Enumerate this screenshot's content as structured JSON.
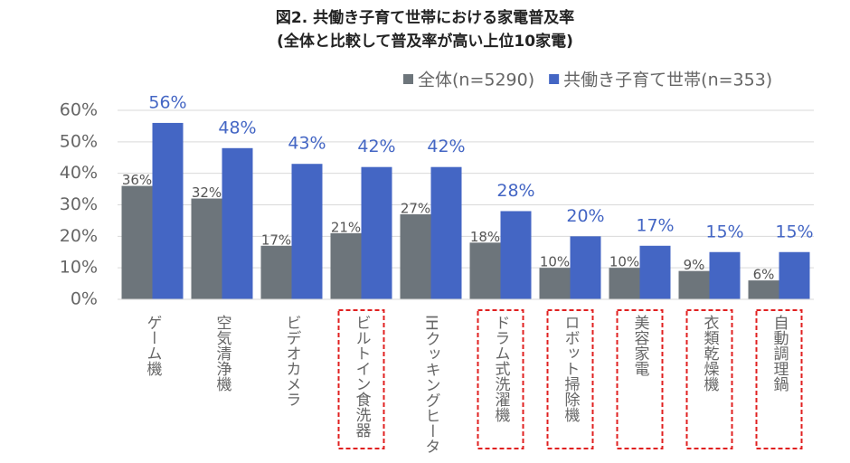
{
  "chart_data": {
    "type": "bar",
    "title": "図2. 共働き子育て世帯における家電普及率",
    "subtitle": "(全体と比較して普及率が高い上位10家電)",
    "categories": [
      "ゲーム機",
      "空気清浄機",
      "ビデオカメラ",
      "ビルトイン食洗器",
      "IHクッキングヒータ",
      "ドラム式洗濯機",
      "ロボット掃除機",
      "美容家電",
      "衣類乾燥機",
      "自動調理鍋"
    ],
    "highlight": [
      false,
      false,
      false,
      true,
      false,
      true,
      true,
      true,
      true,
      true
    ],
    "series": [
      {
        "name": "全体(n=5290)",
        "color": "#6d757b",
        "values": [
          36,
          32,
          17,
          21,
          27,
          18,
          10,
          10,
          9,
          6
        ],
        "value_labels": [
          "36%",
          "32%",
          "17%",
          "21%",
          "27%",
          "18%",
          "10%",
          "10%",
          "9%",
          "6%"
        ]
      },
      {
        "name": "共働き子育て世帯(n=353)",
        "color": "#4466c4",
        "values": [
          56,
          48,
          43,
          42,
          42,
          28,
          20,
          17,
          15,
          15
        ],
        "value_labels": [
          "56%",
          "48%",
          "43%",
          "42%",
          "42%",
          "28%",
          "20%",
          "17%",
          "15%",
          "15%"
        ]
      }
    ],
    "ylim": [
      0,
      60
    ],
    "yticks": [
      {
        "value": 0,
        "label": "0%"
      },
      {
        "value": 10,
        "label": "10%"
      },
      {
        "value": 20,
        "label": "20%"
      },
      {
        "value": 30,
        "label": "30%"
      },
      {
        "value": 40,
        "label": "40%"
      },
      {
        "value": 50,
        "label": "50%"
      },
      {
        "value": 60,
        "label": "60%"
      }
    ],
    "grid": true
  }
}
